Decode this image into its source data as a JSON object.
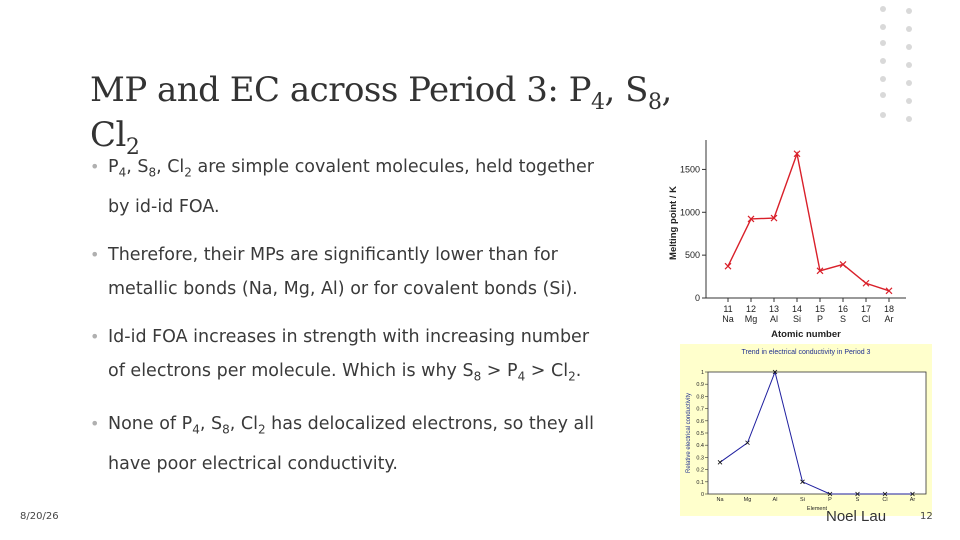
{
  "slide": {
    "title_main": "MP and EC across Period 3: P",
    "title_sub1": "4",
    "title_sep1": ", S",
    "title_sub2": "8",
    "title_sep2": ", Cl",
    "title_sub3": "2",
    "bullets": [
      {
        "parts": [
          "P",
          "4",
          ", S",
          "8",
          ", Cl",
          "2",
          " are simple covalent molecules, held together by id-id FOA."
        ]
      },
      {
        "text": "Therefore, their MPs are significantly lower than for metallic bonds (Na, Mg, Al) or for covalent bonds (Si)."
      },
      {
        "parts": [
          "Id-id FOA increases in strength with increasing number of electrons per molecule. Which is why S",
          "8",
          " > P",
          "4",
          " > Cl",
          "2",
          "."
        ]
      },
      {
        "parts": [
          "None of P",
          "4",
          ", S",
          "8",
          ", Cl",
          "2",
          " has delocalized electrons, so they all have poor electrical conductivity."
        ]
      }
    ],
    "footer": {
      "date": "8/20/26",
      "author": "Noel Lau",
      "page": "12"
    }
  },
  "chart_data": [
    {
      "type": "line",
      "ylabel": "Melting point / K",
      "xlabel": "Atomic number",
      "x": [
        11,
        12,
        13,
        14,
        15,
        16,
        17,
        18
      ],
      "x_elements": [
        "Na",
        "Mg",
        "Al",
        "Si",
        "P",
        "S",
        "Cl",
        "Ar"
      ],
      "y": [
        371,
        922,
        933,
        1683,
        317,
        392,
        172,
        84
      ],
      "yticks": [
        0,
        500,
        1000,
        1500
      ],
      "ylim": [
        0,
        1750
      ],
      "color": "#d9202a"
    },
    {
      "type": "line",
      "title": "Trend in electrical conductivity in Period 3",
      "ylabel": "Relative electrical conductivity",
      "xlabel": "Element",
      "categories": [
        "Na",
        "Mg",
        "Al",
        "Si",
        "P",
        "S",
        "Cl",
        "Ar"
      ],
      "y": [
        0.26,
        0.42,
        1.0,
        0.1,
        0.0,
        0.0,
        0.0,
        0.0
      ],
      "yticks": [
        "0",
        "0.1",
        "0.2",
        "0.3",
        "0.4",
        "0.5",
        "0.6",
        "0.7",
        "0.8",
        "0.9",
        "1"
      ],
      "ylim": [
        0,
        1
      ],
      "color": "#1f1f9f",
      "background": "#ffffcc"
    }
  ]
}
